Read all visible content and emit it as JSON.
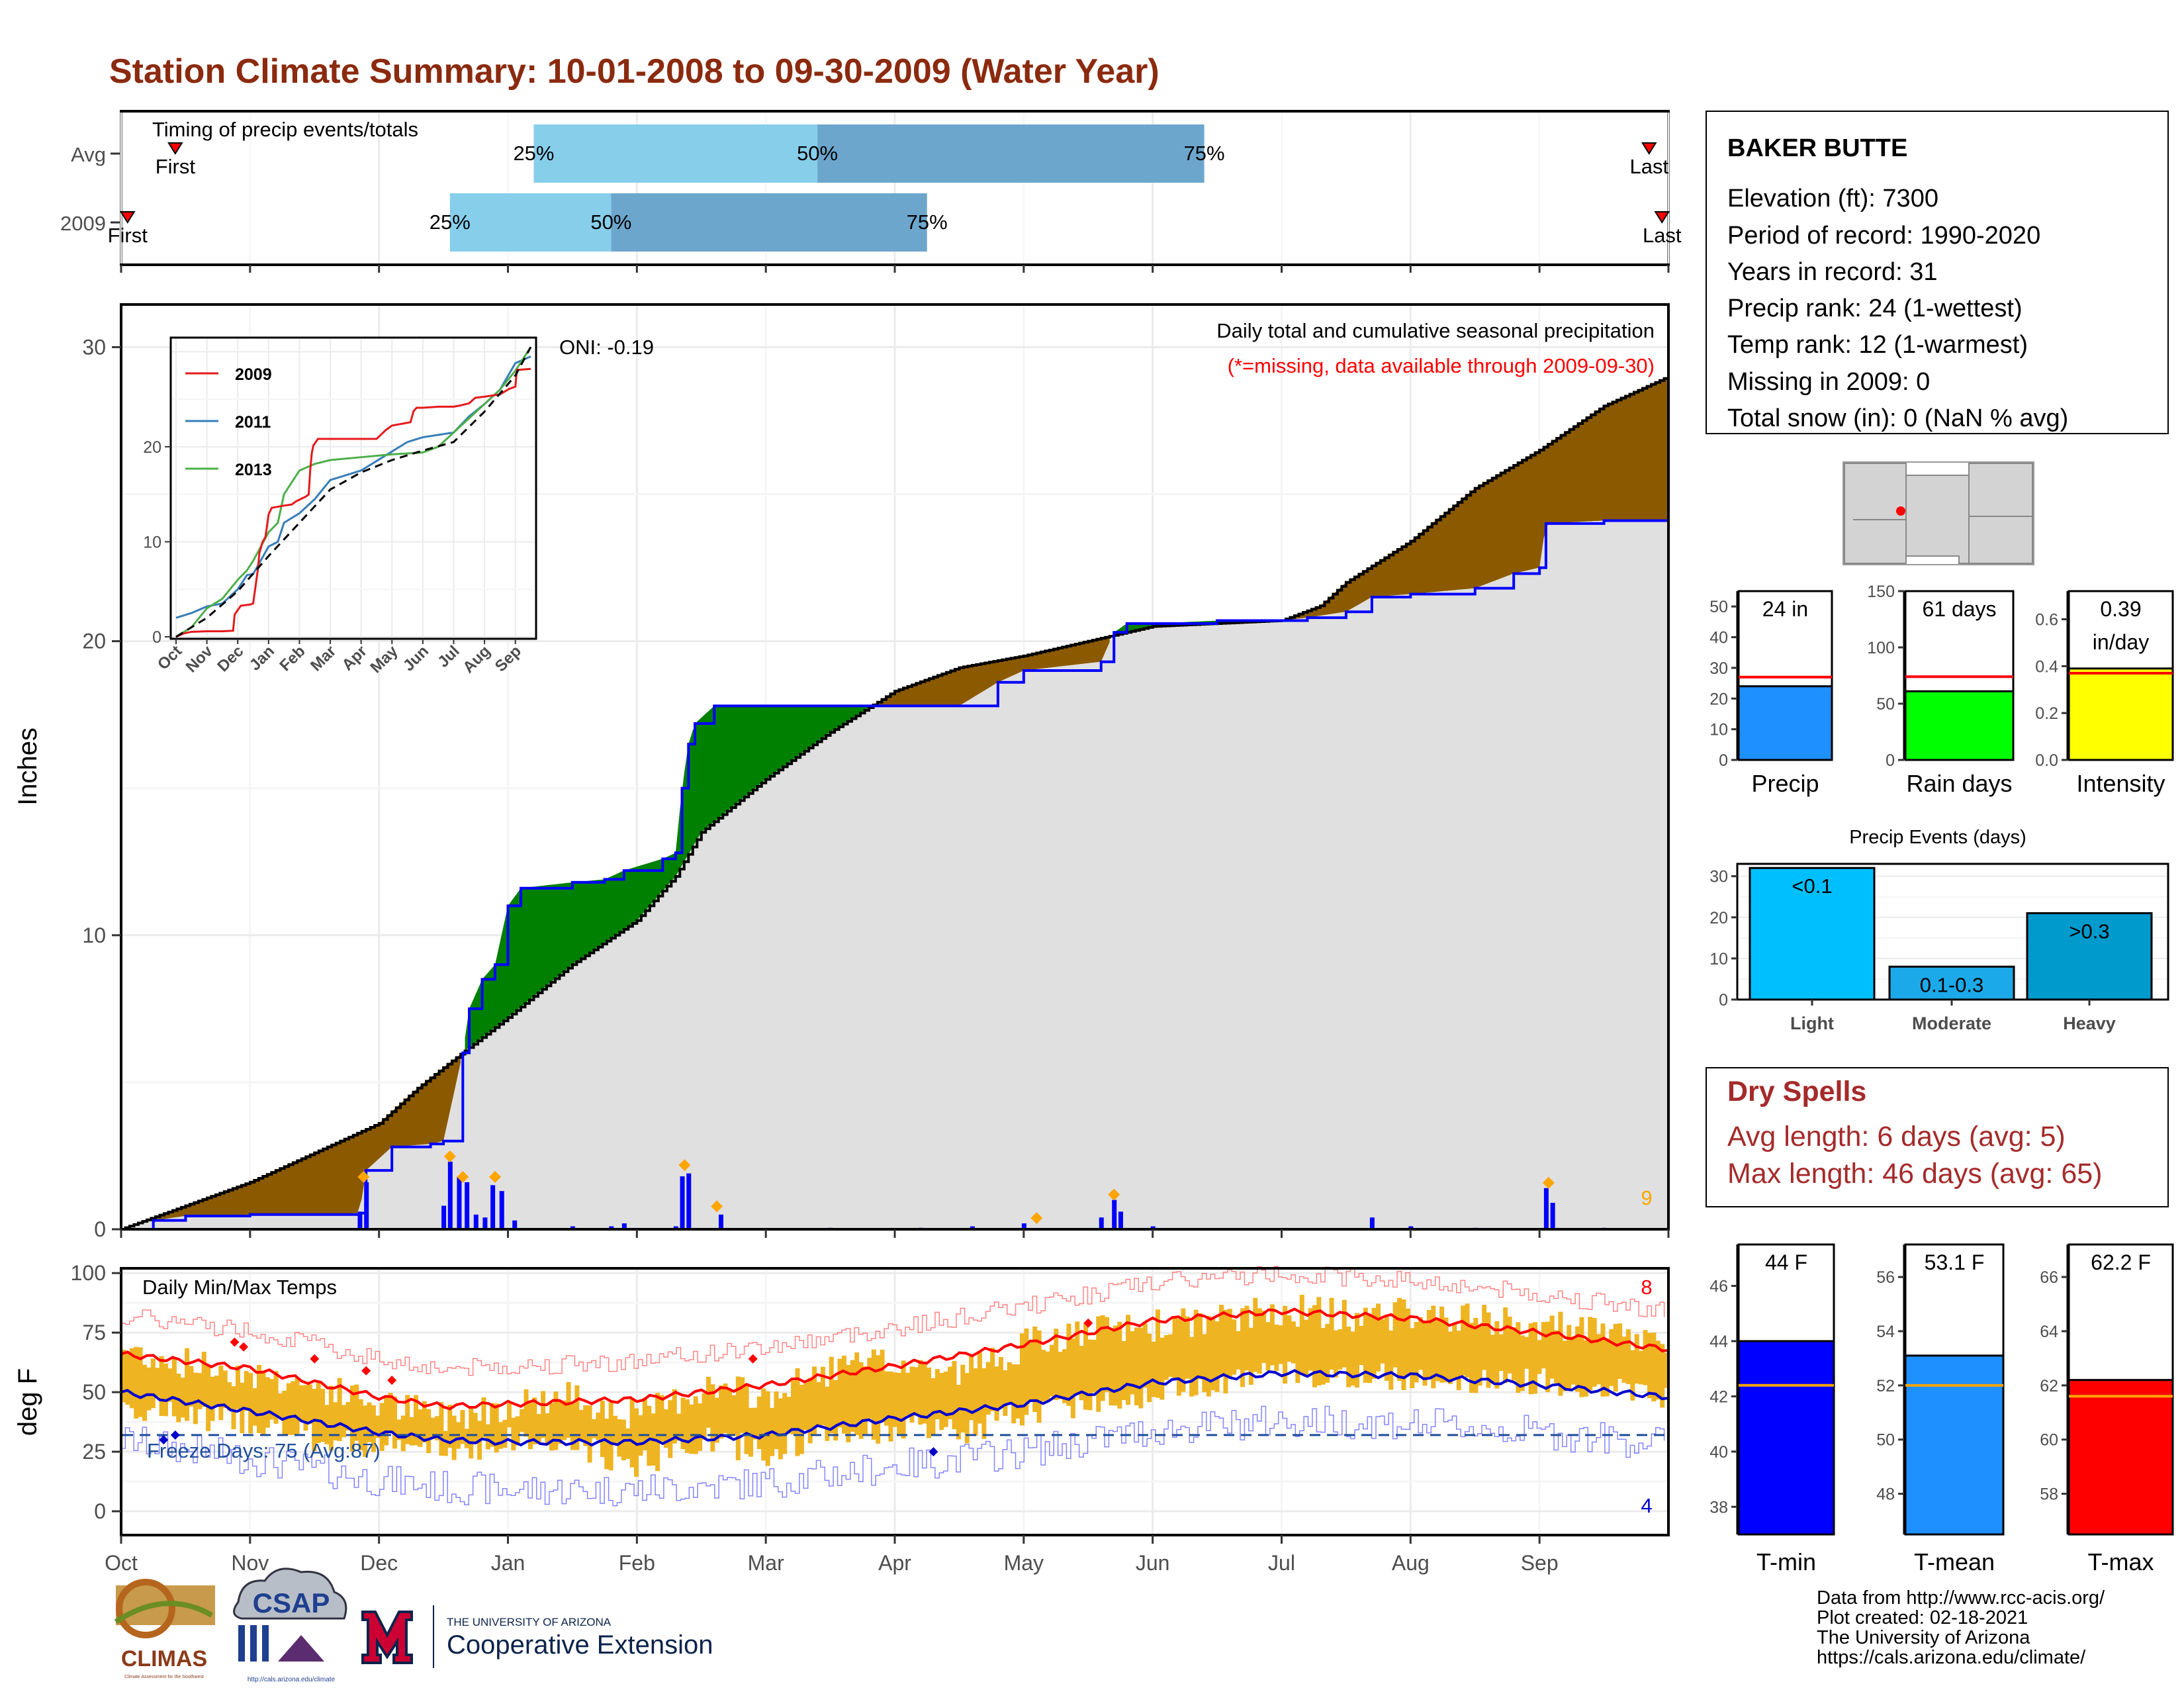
{
  "title": "Station Climate Summary: 10-01-2008 to 09-30-2009 (Water Year)",
  "colors": {
    "title": "#8B2A0E",
    "cum_fill": "#e0e0e0",
    "above_avg": "#8B5A00",
    "below_avg": "#008000",
    "cum_line": "#0000ff",
    "avg_line": "#000000",
    "light_blue": "#87CEEB",
    "mid_blue": "#6CA6CD",
    "temp_bar": "#EEB422",
    "tmax_line": "#ff0000",
    "tmin_line": "#0000cd",
    "freeze_line": "#1F4E9A"
  },
  "timing": {
    "title": "Timing of precip events/totals",
    "rows": [
      {
        "label": "Avg",
        "first_label": "First",
        "last_label": "Last",
        "first": 0.42,
        "p25": 3.2,
        "p50": 5.4,
        "p75": 8.4,
        "last": 11.85
      },
      {
        "label": "2009",
        "first_label": "First",
        "last_label": "Last",
        "first": 0.05,
        "p25": 2.55,
        "p50": 3.8,
        "p75": 6.25,
        "last": 11.95
      }
    ],
    "pct_labels": [
      "25%",
      "50%",
      "75%"
    ]
  },
  "precip_panel": {
    "ylabel": "Inches",
    "ylim": [
      0,
      31
    ],
    "yticks": [
      0,
      10,
      20,
      30
    ],
    "header": "Daily total and cumulative seasonal precipitation",
    "missing_note": "(*=missing, data available through 2009-09-30)",
    "oni": "ONI: -0.19",
    "max_daily_count": "9"
  },
  "inset": {
    "ylim": [
      0,
      31
    ],
    "yticks": [
      0,
      10,
      20
    ],
    "months": [
      "Oct",
      "Nov",
      "Dec",
      "Jan",
      "Feb",
      "Mar",
      "Apr",
      "May",
      "Jun",
      "Jul",
      "Aug",
      "Sep"
    ],
    "legend": [
      {
        "name": "2009",
        "color": "#e41a1c"
      },
      {
        "name": "2011",
        "color": "#377eb8"
      },
      {
        "name": "2013",
        "color": "#4daf4a"
      }
    ]
  },
  "temp_panel": {
    "ylabel": "deg F",
    "label": "Daily Min/Max Temps",
    "ylim": [
      -10,
      102
    ],
    "yticks": [
      0,
      25,
      50,
      75,
      100
    ],
    "freeze_days": "Freeze Days: 75 (Avg:87)",
    "freeze_level": 32,
    "record_high_count": "8",
    "record_low_count": "4"
  },
  "months": [
    "Oct",
    "Nov",
    "Dec",
    "Jan",
    "Feb",
    "Mar",
    "Apr",
    "May",
    "Jun",
    "Jul",
    "Aug",
    "Sep"
  ],
  "station": {
    "name": "BAKER BUTTE",
    "lines": [
      "Elevation (ft): 7300",
      "Period of record: 1990-2020",
      "Years in record: 31",
      "Precip rank: 24 (1-wettest)",
      "Temp rank: 12 (1-warmest)",
      "Missing in 2009: 0",
      "Total snow (in): 0 (NaN % avg)"
    ]
  },
  "summary_bars": [
    {
      "key": "precip",
      "xlabel": "Precip",
      "value_label": "24 in",
      "value": 24,
      "avg": 27,
      "ylim": [
        0,
        55
      ],
      "yticks": [
        0,
        10,
        20,
        30,
        40,
        50
      ],
      "color": "#1E90FF"
    },
    {
      "key": "raindays",
      "xlabel": "Rain days",
      "value_label": "61 days",
      "value": 61,
      "avg": 74,
      "ylim": [
        0,
        150
      ],
      "yticks": [
        0,
        50,
        100,
        150
      ],
      "color": "#00FF00"
    },
    {
      "key": "intensity",
      "xlabel": "Intensity",
      "value_label": "0.39",
      "value_label2": "in/day",
      "value": 0.39,
      "avg": 0.37,
      "ylim": [
        0,
        0.72
      ],
      "yticks": [
        "0.0",
        "0.2",
        "0.4",
        "0.6"
      ],
      "color": "#FFFF00"
    }
  ],
  "events": {
    "title": "Precip Events (days)",
    "ylim": [
      0,
      33
    ],
    "yticks": [
      0,
      10,
      20,
      30
    ],
    "bars": [
      {
        "name": "Light",
        "label": "<0.1",
        "value": 32,
        "color": "#00BFFF"
      },
      {
        "name": "Moderate",
        "label": "0.1-0.3",
        "value": 8,
        "color": "#1CA9E9"
      },
      {
        "name": "Heavy",
        "label": ">0.3",
        "value": 21,
        "color": "#009ACD"
      }
    ]
  },
  "dry_spells": {
    "title": "Dry Spells",
    "lines": [
      "Avg length: 6 days (avg: 5)",
      "Max length: 46 days (avg: 65)"
    ],
    "color": "#A52A2A"
  },
  "temp_bars": [
    {
      "key": "tmin",
      "xlabel": "T-min",
      "value_label": "44 F",
      "value": 44.0,
      "avg": 42.4,
      "ylim": [
        37,
        47.5
      ],
      "yticks": [
        38,
        40,
        42,
        44,
        46
      ],
      "color": "#0000FF"
    },
    {
      "key": "tmean",
      "xlabel": "T-mean",
      "value_label": "53.1 F",
      "value": 53.1,
      "avg": 52.0,
      "ylim": [
        46.5,
        57.2
      ],
      "yticks": [
        48,
        50,
        52,
        54,
        56
      ],
      "color": "#1E90FF"
    },
    {
      "key": "tmax",
      "xlabel": "T-max",
      "value_label": "62.2 F",
      "value": 62.2,
      "avg": 61.6,
      "ylim": [
        56.5,
        67.2
      ],
      "yticks": [
        58,
        60,
        62,
        64,
        66
      ],
      "color": "#FF0000"
    }
  ],
  "credits": [
    "Data from http://www.rcc-acis.org/",
    "Plot created: 02-18-2021",
    "The University of Arizona",
    "https://cals.arizona.edu/climate/"
  ],
  "logos": {
    "climas": "CLIMAS",
    "csap": "CSAP",
    "ua_small": "THE UNIVERSITY OF ARIZONA",
    "coop": "Cooperative Extension",
    "climas_sub": "Climate Assessment for the Southwest",
    "csap_url": "http://cals.arizona.edu/climate"
  },
  "chart_data": [
    {
      "type": "area",
      "title": "Daily total and cumulative seasonal precipitation",
      "ylabel": "Inches",
      "ylim": [
        0,
        31
      ],
      "x_unit": "month of water year (0 = Oct 1)",
      "cum_avg_points": [
        [
          0,
          0
        ],
        [
          0.5,
          0.8
        ],
        [
          1,
          1.6
        ],
        [
          1.5,
          2.6
        ],
        [
          2,
          3.6
        ],
        [
          2.3,
          4.8
        ],
        [
          2.5,
          5.5
        ],
        [
          3,
          7.2
        ],
        [
          3.5,
          9
        ],
        [
          4,
          10.5
        ],
        [
          4.3,
          12
        ],
        [
          4.5,
          13.5
        ],
        [
          5,
          15.3
        ],
        [
          5.5,
          16.9
        ],
        [
          6,
          18.3
        ],
        [
          6.5,
          19.1
        ],
        [
          7,
          19.5
        ],
        [
          7.5,
          20
        ],
        [
          8,
          20.5
        ],
        [
          8.5,
          20.6
        ],
        [
          9,
          20.7
        ],
        [
          9.3,
          21.2
        ],
        [
          9.5,
          22
        ],
        [
          10,
          23.4
        ],
        [
          10.5,
          25.2
        ],
        [
          11,
          26.5
        ],
        [
          11.5,
          28
        ],
        [
          12,
          29
        ]
      ],
      "cum_2009_points": [
        [
          0,
          0
        ],
        [
          0.25,
          0.3
        ],
        [
          0.5,
          0.45
        ],
        [
          1,
          0.5
        ],
        [
          1.5,
          0.5
        ],
        [
          1.85,
          0.55
        ],
        [
          1.9,
          2
        ],
        [
          2.1,
          2.8
        ],
        [
          2.4,
          2.9
        ],
        [
          2.5,
          3
        ],
        [
          2.65,
          6
        ],
        [
          2.7,
          7.5
        ],
        [
          2.8,
          8.5
        ],
        [
          2.9,
          9
        ],
        [
          3.0,
          11
        ],
        [
          3.1,
          11.6
        ],
        [
          3.5,
          11.8
        ],
        [
          3.75,
          11.9
        ],
        [
          3.9,
          12.2
        ],
        [
          4.2,
          12.6
        ],
        [
          4.3,
          12.8
        ],
        [
          4.35,
          15
        ],
        [
          4.4,
          16.5
        ],
        [
          4.45,
          17.2
        ],
        [
          4.6,
          17.8
        ],
        [
          5,
          17.8
        ],
        [
          5.5,
          17.8
        ],
        [
          6,
          17.8
        ],
        [
          6.5,
          17.8
        ],
        [
          6.8,
          18.6
        ],
        [
          7,
          19
        ],
        [
          7.6,
          19.3
        ],
        [
          7.7,
          20.3
        ],
        [
          7.8,
          20.6
        ],
        [
          8,
          20.6
        ],
        [
          8.5,
          20.7
        ],
        [
          9,
          20.7
        ],
        [
          9.2,
          20.8
        ],
        [
          9.5,
          21
        ],
        [
          9.7,
          21.5
        ],
        [
          10,
          21.6
        ],
        [
          10.5,
          21.8
        ],
        [
          10.8,
          22.3
        ],
        [
          11.0,
          22.5
        ],
        [
          11.05,
          24
        ],
        [
          11.5,
          24.1
        ],
        [
          12,
          24.1
        ]
      ],
      "daily_spikes": [
        [
          1.85,
          0.6
        ],
        [
          1.9,
          1.6
        ],
        [
          2.5,
          0.8
        ],
        [
          2.55,
          2.3
        ],
        [
          2.62,
          1.8
        ],
        [
          2.68,
          1.6
        ],
        [
          2.75,
          0.5
        ],
        [
          2.82,
          0.4
        ],
        [
          2.88,
          1.5
        ],
        [
          2.95,
          1.3
        ],
        [
          3.05,
          0.3
        ],
        [
          3.5,
          0.1
        ],
        [
          3.8,
          0.1
        ],
        [
          3.9,
          0.2
        ],
        [
          4.3,
          0.1
        ],
        [
          4.35,
          1.8
        ],
        [
          4.4,
          1.9
        ],
        [
          4.65,
          0.5
        ],
        [
          5.5,
          0.05
        ],
        [
          6.2,
          0.05
        ],
        [
          6.6,
          0.1
        ],
        [
          7.0,
          0.2
        ],
        [
          7.6,
          0.4
        ],
        [
          7.7,
          1.0
        ],
        [
          7.75,
          0.6
        ],
        [
          8.0,
          0.1
        ],
        [
          9.7,
          0.4
        ],
        [
          10.0,
          0.1
        ],
        [
          10.5,
          0.05
        ],
        [
          11.05,
          1.4
        ],
        [
          11.1,
          0.9
        ],
        [
          11.5,
          0.05
        ]
      ],
      "max_markers": [
        [
          1.88,
          1.6
        ],
        [
          2.55,
          2.3
        ],
        [
          2.65,
          1.6
        ],
        [
          2.9,
          1.6
        ],
        [
          4.37,
          2.0
        ],
        [
          4.62,
          0.6
        ],
        [
          7.1,
          0.2
        ],
        [
          7.7,
          1.0
        ],
        [
          11.07,
          1.4
        ]
      ]
    },
    {
      "type": "line",
      "title": "Daily Min/Max Temps",
      "ylabel": "deg F",
      "ylim": [
        -10,
        102
      ],
      "x_unit": "month of water year (0 = Oct 1)",
      "avg_tmax": [
        [
          0,
          66
        ],
        [
          1,
          60
        ],
        [
          2,
          48
        ],
        [
          2.5,
          44
        ],
        [
          3,
          45
        ],
        [
          4,
          47
        ],
        [
          5,
          53
        ],
        [
          6,
          61
        ],
        [
          7,
          70
        ],
        [
          8,
          80
        ],
        [
          9,
          84
        ],
        [
          10,
          81
        ],
        [
          11,
          75
        ],
        [
          12,
          68
        ]
      ],
      "avg_tmin": [
        [
          0,
          50
        ],
        [
          1,
          42
        ],
        [
          2,
          33
        ],
        [
          2.5,
          30
        ],
        [
          3,
          29
        ],
        [
          4,
          29
        ],
        [
          5,
          32
        ],
        [
          6,
          39
        ],
        [
          7,
          45
        ],
        [
          8,
          54
        ],
        [
          9,
          58
        ],
        [
          10,
          57
        ],
        [
          11,
          53
        ],
        [
          12,
          48
        ]
      ],
      "tmax_daily_est": [
        [
          0,
          68
        ],
        [
          0.5,
          62
        ],
        [
          1,
          58
        ],
        [
          1.5,
          52
        ],
        [
          2,
          45
        ],
        [
          2.5,
          40
        ],
        [
          3,
          45
        ],
        [
          3.5,
          48
        ],
        [
          4,
          40
        ],
        [
          4.5,
          52
        ],
        [
          5,
          48
        ],
        [
          5.5,
          60
        ],
        [
          6,
          62
        ],
        [
          6.5,
          58
        ],
        [
          7,
          70
        ],
        [
          7.5,
          75
        ],
        [
          8,
          78
        ],
        [
          8.5,
          80
        ],
        [
          9,
          85
        ],
        [
          9.5,
          82
        ],
        [
          10,
          83
        ],
        [
          10.5,
          80
        ],
        [
          11,
          78
        ],
        [
          11.5,
          74
        ],
        [
          12,
          70
        ]
      ],
      "tmin_daily_est": [
        [
          0,
          45
        ],
        [
          0.5,
          40
        ],
        [
          1,
          38
        ],
        [
          1.5,
          30
        ],
        [
          2,
          28
        ],
        [
          2.5,
          25
        ],
        [
          3,
          30
        ],
        [
          3.5,
          27
        ],
        [
          4,
          20
        ],
        [
          4.5,
          30
        ],
        [
          5,
          25
        ],
        [
          5.5,
          32
        ],
        [
          6,
          35
        ],
        [
          6.5,
          33
        ],
        [
          7,
          42
        ],
        [
          7.5,
          46
        ],
        [
          8,
          50
        ],
        [
          8.5,
          55
        ],
        [
          9,
          58
        ],
        [
          9.5,
          56
        ],
        [
          10,
          57
        ],
        [
          10.5,
          54
        ],
        [
          11,
          55
        ],
        [
          11.5,
          52
        ],
        [
          12,
          48
        ]
      ]
    }
  ]
}
